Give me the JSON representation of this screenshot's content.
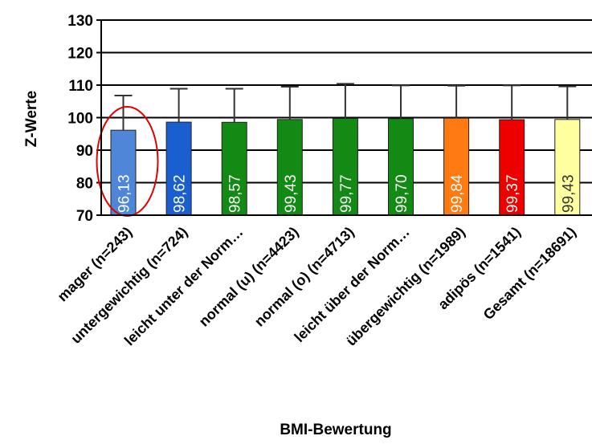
{
  "chart_data": {
    "type": "bar",
    "title": "",
    "xlabel": "BMI-Bewertung",
    "ylabel": "Z-Werte",
    "ylim": [
      70,
      130
    ],
    "yticks": [
      70,
      80,
      90,
      100,
      110,
      120,
      130
    ],
    "grid": true,
    "categories": [
      "mager (n=243)",
      "untergewichtig (n=724)",
      "leicht unter der Norm…",
      "normal (u) (n=4423)",
      "normal (o) (n=4713)",
      "leicht über der Norm…",
      "übergewichtig (n=1989)",
      "adipös (n=1541)",
      "Gesamt (n=18691)"
    ],
    "values": [
      96.13,
      98.62,
      98.57,
      99.43,
      99.77,
      99.7,
      99.84,
      99.37,
      99.43
    ],
    "value_labels": [
      "96,13",
      "98,62",
      "98,57",
      "99,43",
      "99,77",
      "99,70",
      "99,84",
      "99,37",
      "99,43"
    ],
    "error_upper": [
      106.8,
      108.9,
      108.9,
      109.5,
      110.4,
      109.9,
      109.8,
      109.9,
      109.6
    ],
    "bar_colors": [
      "#4f86d8",
      "#1a5fd0",
      "#138a13",
      "#138a13",
      "#138a13",
      "#138a13",
      "#ff7a10",
      "#ee0000",
      "#ffffa0"
    ],
    "value_label_colors": [
      "#ffffff",
      "#ffffff",
      "#ffffff",
      "#ffffff",
      "#ffffff",
      "#ffffff",
      "#ffffff",
      "#ffffff",
      "#333333"
    ],
    "highlight": {
      "category_index": 0,
      "shape": "ellipse",
      "color": "#e00000"
    }
  }
}
